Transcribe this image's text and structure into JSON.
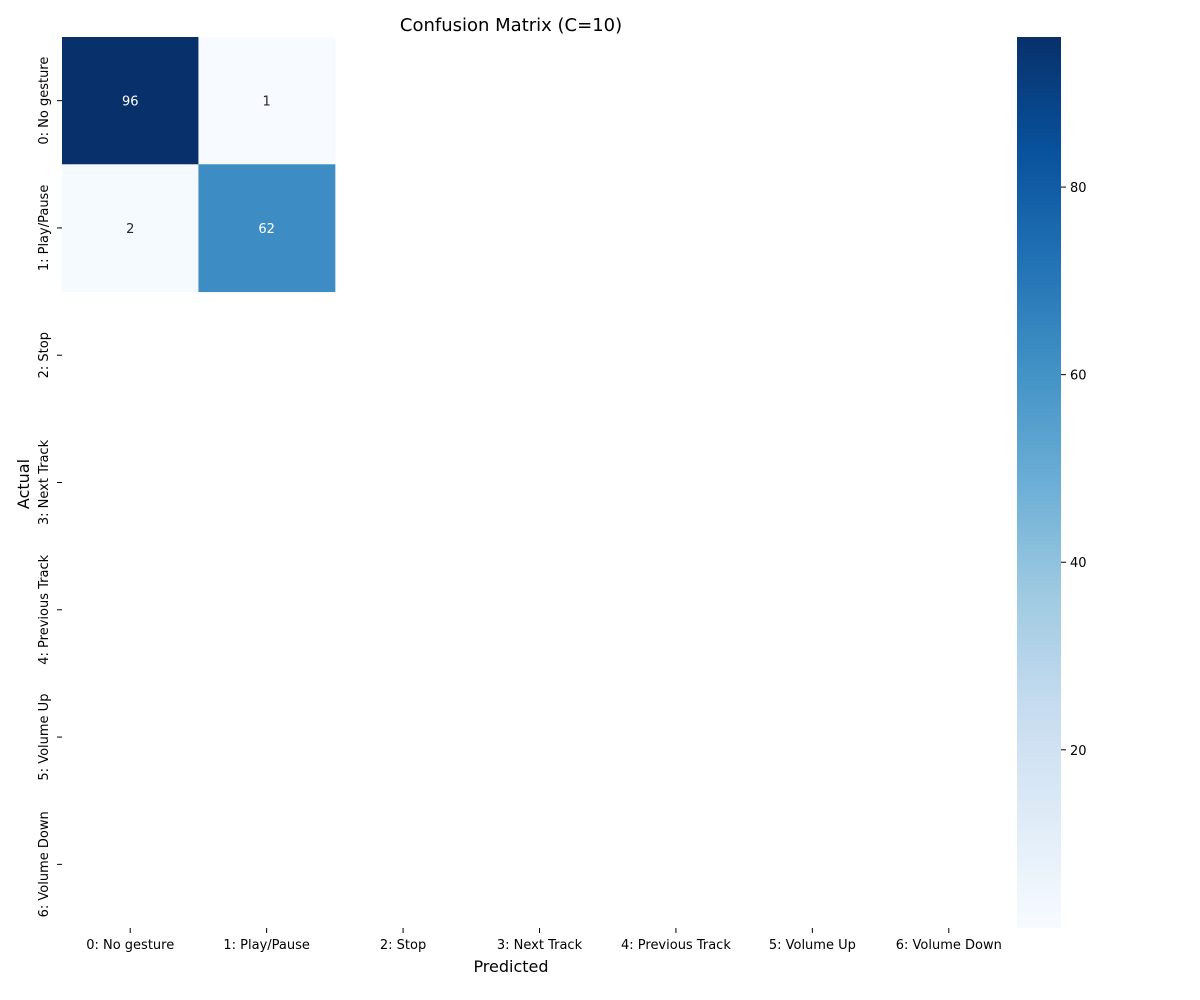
{
  "chart_data": {
    "type": "heatmap",
    "title": "Confusion Matrix (C=10)",
    "xlabel": "Predicted",
    "ylabel": "Actual",
    "x_categories": [
      "0: No gesture",
      "1: Play/Pause",
      "2: Stop",
      "3: Next Track",
      "4: Previous Track",
      "5: Volume Up",
      "6: Volume Down"
    ],
    "y_categories": [
      "0: No gesture",
      "1: Play/Pause",
      "2: Stop",
      "3: Next Track",
      "4: Previous Track",
      "5: Volume Up",
      "6: Volume Down"
    ],
    "cells": [
      {
        "row": 0,
        "col": 0,
        "value": 96
      },
      {
        "row": 0,
        "col": 1,
        "value": 1
      },
      {
        "row": 1,
        "col": 0,
        "value": 2
      },
      {
        "row": 1,
        "col": 1,
        "value": 62
      }
    ],
    "colormap": "Blues",
    "colorbar": {
      "vmin": 1,
      "vmax": 96,
      "ticks": [
        20,
        40,
        60,
        80
      ]
    }
  }
}
